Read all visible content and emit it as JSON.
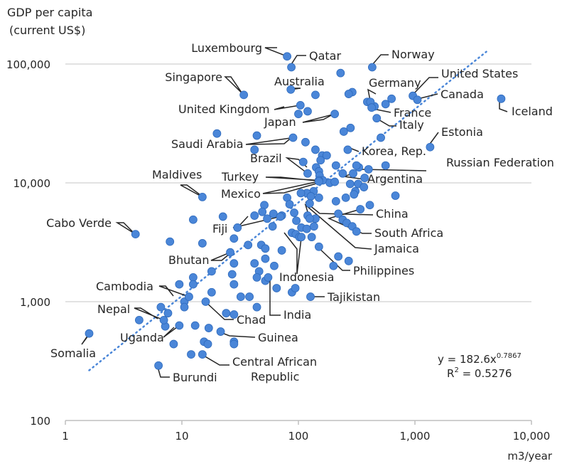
{
  "chart_data": {
    "type": "scatter",
    "title": "",
    "ylabel": "GDP per capita (current US$)",
    "ylabel_lines": [
      "GDP per capita",
      "(current US$)"
    ],
    "xlabel": "m3/year",
    "x_scale": "log",
    "y_scale": "log",
    "xlim": [
      1,
      10000
    ],
    "ylim": [
      100,
      150000
    ],
    "x_ticks": [
      1,
      10,
      100,
      1000,
      10000
    ],
    "x_tick_labels": [
      "1",
      "10",
      "100",
      "1,000",
      "10,000"
    ],
    "y_ticks": [
      100,
      1000,
      10000,
      100000
    ],
    "y_tick_labels": [
      "100",
      "1,000",
      "10,000",
      "100,000"
    ],
    "grid": "horizontal",
    "legend": "none",
    "colors": {
      "points": "#4a86d8",
      "point_stroke": "#2f6bbd",
      "trendline": "#4a86d8",
      "grid": "#d9d9d9",
      "text": "#262626"
    },
    "trendline": {
      "type": "power",
      "a": 182.6,
      "b": 0.7867,
      "x_range": [
        1.6,
        4100
      ]
    },
    "equation_text": {
      "base": "y = 182.6x",
      "exp": "0.7867"
    },
    "r2_text": {
      "base": "R",
      "sup": "2",
      "rest": " = 0.5276"
    },
    "labeled_points": [
      {
        "label": "Luxembourg",
        "x": 80,
        "y": 116000
      },
      {
        "label": "Qatar",
        "x": 87,
        "y": 94000
      },
      {
        "label": "Norway",
        "x": 430,
        "y": 94000
      },
      {
        "label": "Singapore",
        "x": 34,
        "y": 55000
      },
      {
        "label": "Australia",
        "x": 86,
        "y": 61000
      },
      {
        "label": "Germany",
        "x": 415,
        "y": 48000
      },
      {
        "label": "United States",
        "x": 960,
        "y": 54000
      },
      {
        "label": "Canada",
        "x": 1050,
        "y": 50000
      },
      {
        "label": "Iceland",
        "x": 5500,
        "y": 51000
      },
      {
        "label": "United Kingdom",
        "x": 104,
        "y": 45000
      },
      {
        "label": "France",
        "x": 425,
        "y": 43000
      },
      {
        "label": "Japan",
        "x": 205,
        "y": 38000
      },
      {
        "label": "Italy",
        "x": 470,
        "y": 35000
      },
      {
        "label": "Estonia",
        "x": 1350,
        "y": 20000
      },
      {
        "label": "Saudi Arabia",
        "x": 90,
        "y": 24000
      },
      {
        "label": "Korea, Rep.",
        "x": 265,
        "y": 19000
      },
      {
        "label": "Brazil",
        "x": 120,
        "y": 12000
      },
      {
        "label": "Russian Federation",
        "x": 315,
        "y": 14000
      },
      {
        "label": "Maldives",
        "x": 15,
        "y": 7600
      },
      {
        "label": "Turkey",
        "x": 150,
        "y": 10500
      },
      {
        "label": "Argentina",
        "x": 295,
        "y": 12000
      },
      {
        "label": "Mexico",
        "x": 150,
        "y": 10300
      },
      {
        "label": "China",
        "x": 125,
        "y": 6700
      },
      {
        "label": "Cabo Verde",
        "x": 4,
        "y": 3700
      },
      {
        "label": "Fiji",
        "x": 70,
        "y": 5200
      },
      {
        "label": "South Africa",
        "x": 340,
        "y": 6000
      },
      {
        "label": "Jamaica",
        "x": 125,
        "y": 5000
      },
      {
        "label": "Bhutan",
        "x": 26,
        "y": 2600
      },
      {
        "label": "Philippines",
        "x": 150,
        "y": 2900
      },
      {
        "label": "Indonesia",
        "x": 106,
        "y": 3500
      },
      {
        "label": "Cambodia",
        "x": 11.5,
        "y": 1100
      },
      {
        "label": "Tajikistan",
        "x": 127,
        "y": 1100
      },
      {
        "label": "India",
        "x": 55,
        "y": 1600
      },
      {
        "label": "Nepal",
        "x": 7,
        "y": 700
      },
      {
        "label": "Chad",
        "x": 16,
        "y": 1000
      },
      {
        "label": "Uganda",
        "x": 9.5,
        "y": 630
      },
      {
        "label": "Guinea",
        "x": 21.5,
        "y": 560
      },
      {
        "label": "Somalia",
        "x": 1.6,
        "y": 540
      },
      {
        "label": "Central African Republic",
        "x": 15,
        "y": 360
      },
      {
        "label": "Burundi",
        "x": 6.3,
        "y": 290
      }
    ],
    "other_points": [
      {
        "x": 230,
        "y": 84000
      },
      {
        "x": 290,
        "y": 58000
      },
      {
        "x": 140,
        "y": 55000
      },
      {
        "x": 630,
        "y": 51000
      },
      {
        "x": 560,
        "y": 46000
      },
      {
        "x": 390,
        "y": 48000
      },
      {
        "x": 450,
        "y": 44000
      },
      {
        "x": 100,
        "y": 38000
      },
      {
        "x": 120,
        "y": 40000
      },
      {
        "x": 270,
        "y": 56000
      },
      {
        "x": 20,
        "y": 26000
      },
      {
        "x": 44,
        "y": 25000
      },
      {
        "x": 115,
        "y": 22000
      },
      {
        "x": 140,
        "y": 19000
      },
      {
        "x": 160,
        "y": 17000
      },
      {
        "x": 245,
        "y": 27000
      },
      {
        "x": 280,
        "y": 29000
      },
      {
        "x": 510,
        "y": 24000
      },
      {
        "x": 42,
        "y": 19000
      },
      {
        "x": 110,
        "y": 15000
      },
      {
        "x": 155,
        "y": 15500
      },
      {
        "x": 175,
        "y": 17000
      },
      {
        "x": 210,
        "y": 14000
      },
      {
        "x": 240,
        "y": 12000
      },
      {
        "x": 330,
        "y": 13500
      },
      {
        "x": 400,
        "y": 13000
      },
      {
        "x": 370,
        "y": 11000
      },
      {
        "x": 560,
        "y": 14000
      },
      {
        "x": 142,
        "y": 13500
      },
      {
        "x": 150,
        "y": 12500
      },
      {
        "x": 152,
        "y": 11500
      },
      {
        "x": 162,
        "y": 10500
      },
      {
        "x": 186,
        "y": 10000
      },
      {
        "x": 205,
        "y": 10200
      },
      {
        "x": 278,
        "y": 9800
      },
      {
        "x": 308,
        "y": 8500
      },
      {
        "x": 326,
        "y": 9800
      },
      {
        "x": 365,
        "y": 9200
      },
      {
        "x": 135,
        "y": 8500
      },
      {
        "x": 118,
        "y": 8200
      },
      {
        "x": 128,
        "y": 7700
      },
      {
        "x": 105,
        "y": 8200
      },
      {
        "x": 150,
        "y": 7500
      },
      {
        "x": 210,
        "y": 7000
      },
      {
        "x": 255,
        "y": 7500
      },
      {
        "x": 300,
        "y": 8000
      },
      {
        "x": 410,
        "y": 6500
      },
      {
        "x": 680,
        "y": 7800
      },
      {
        "x": 80,
        "y": 7500
      },
      {
        "x": 51,
        "y": 6500
      },
      {
        "x": 49,
        "y": 5700
      },
      {
        "x": 42,
        "y": 5300
      },
      {
        "x": 54,
        "y": 5000
      },
      {
        "x": 61,
        "y": 5500
      },
      {
        "x": 72,
        "y": 5300
      },
      {
        "x": 84,
        "y": 6600
      },
      {
        "x": 92,
        "y": 5600
      },
      {
        "x": 96,
        "y": 4800
      },
      {
        "x": 106,
        "y": 4200
      },
      {
        "x": 118,
        "y": 4100
      },
      {
        "x": 120,
        "y": 5300
      },
      {
        "x": 136,
        "y": 4300
      },
      {
        "x": 140,
        "y": 5000
      },
      {
        "x": 220,
        "y": 5500
      },
      {
        "x": 240,
        "y": 4900
      },
      {
        "x": 260,
        "y": 4600
      },
      {
        "x": 290,
        "y": 4300
      },
      {
        "x": 315,
        "y": 3900
      },
      {
        "x": 12.5,
        "y": 4900
      },
      {
        "x": 22.5,
        "y": 5200
      },
      {
        "x": 30,
        "y": 4200
      },
      {
        "x": 60,
        "y": 4300
      },
      {
        "x": 88,
        "y": 3800
      },
      {
        "x": 95,
        "y": 3700
      },
      {
        "x": 102,
        "y": 3500
      },
      {
        "x": 130,
        "y": 3500
      },
      {
        "x": 7.9,
        "y": 3200
      },
      {
        "x": 15,
        "y": 3100
      },
      {
        "x": 28,
        "y": 3400
      },
      {
        "x": 37,
        "y": 3000
      },
      {
        "x": 48,
        "y": 3000
      },
      {
        "x": 52,
        "y": 2800
      },
      {
        "x": 72,
        "y": 2700
      },
      {
        "x": 200,
        "y": 2000
      },
      {
        "x": 220,
        "y": 2400
      },
      {
        "x": 270,
        "y": 2200
      },
      {
        "x": 28,
        "y": 2100
      },
      {
        "x": 42,
        "y": 2100
      },
      {
        "x": 46,
        "y": 1800
      },
      {
        "x": 52,
        "y": 2300
      },
      {
        "x": 62,
        "y": 2000
      },
      {
        "x": 18,
        "y": 1800
      },
      {
        "x": 27,
        "y": 1700
      },
      {
        "x": 44,
        "y": 1600
      },
      {
        "x": 52,
        "y": 1500
      },
      {
        "x": 12.5,
        "y": 1600
      },
      {
        "x": 12.5,
        "y": 1400
      },
      {
        "x": 9.5,
        "y": 1400
      },
      {
        "x": 10.5,
        "y": 1000
      },
      {
        "x": 7.6,
        "y": 800
      },
      {
        "x": 10.5,
        "y": 900
      },
      {
        "x": 18,
        "y": 1200
      },
      {
        "x": 28,
        "y": 1400
      },
      {
        "x": 32,
        "y": 1100
      },
      {
        "x": 38,
        "y": 1100
      },
      {
        "x": 65,
        "y": 1300
      },
      {
        "x": 88,
        "y": 1200
      },
      {
        "x": 94,
        "y": 1300
      },
      {
        "x": 44,
        "y": 900
      },
      {
        "x": 24,
        "y": 800
      },
      {
        "x": 28,
        "y": 780
      },
      {
        "x": 6.6,
        "y": 900
      },
      {
        "x": 4.3,
        "y": 700
      },
      {
        "x": 7.2,
        "y": 620
      },
      {
        "x": 13,
        "y": 630
      },
      {
        "x": 17,
        "y": 600
      },
      {
        "x": 28,
        "y": 460
      },
      {
        "x": 8.5,
        "y": 440
      },
      {
        "x": 15.5,
        "y": 460
      },
      {
        "x": 16.7,
        "y": 440
      },
      {
        "x": 28,
        "y": 440
      },
      {
        "x": 12,
        "y": 360
      }
    ]
  }
}
